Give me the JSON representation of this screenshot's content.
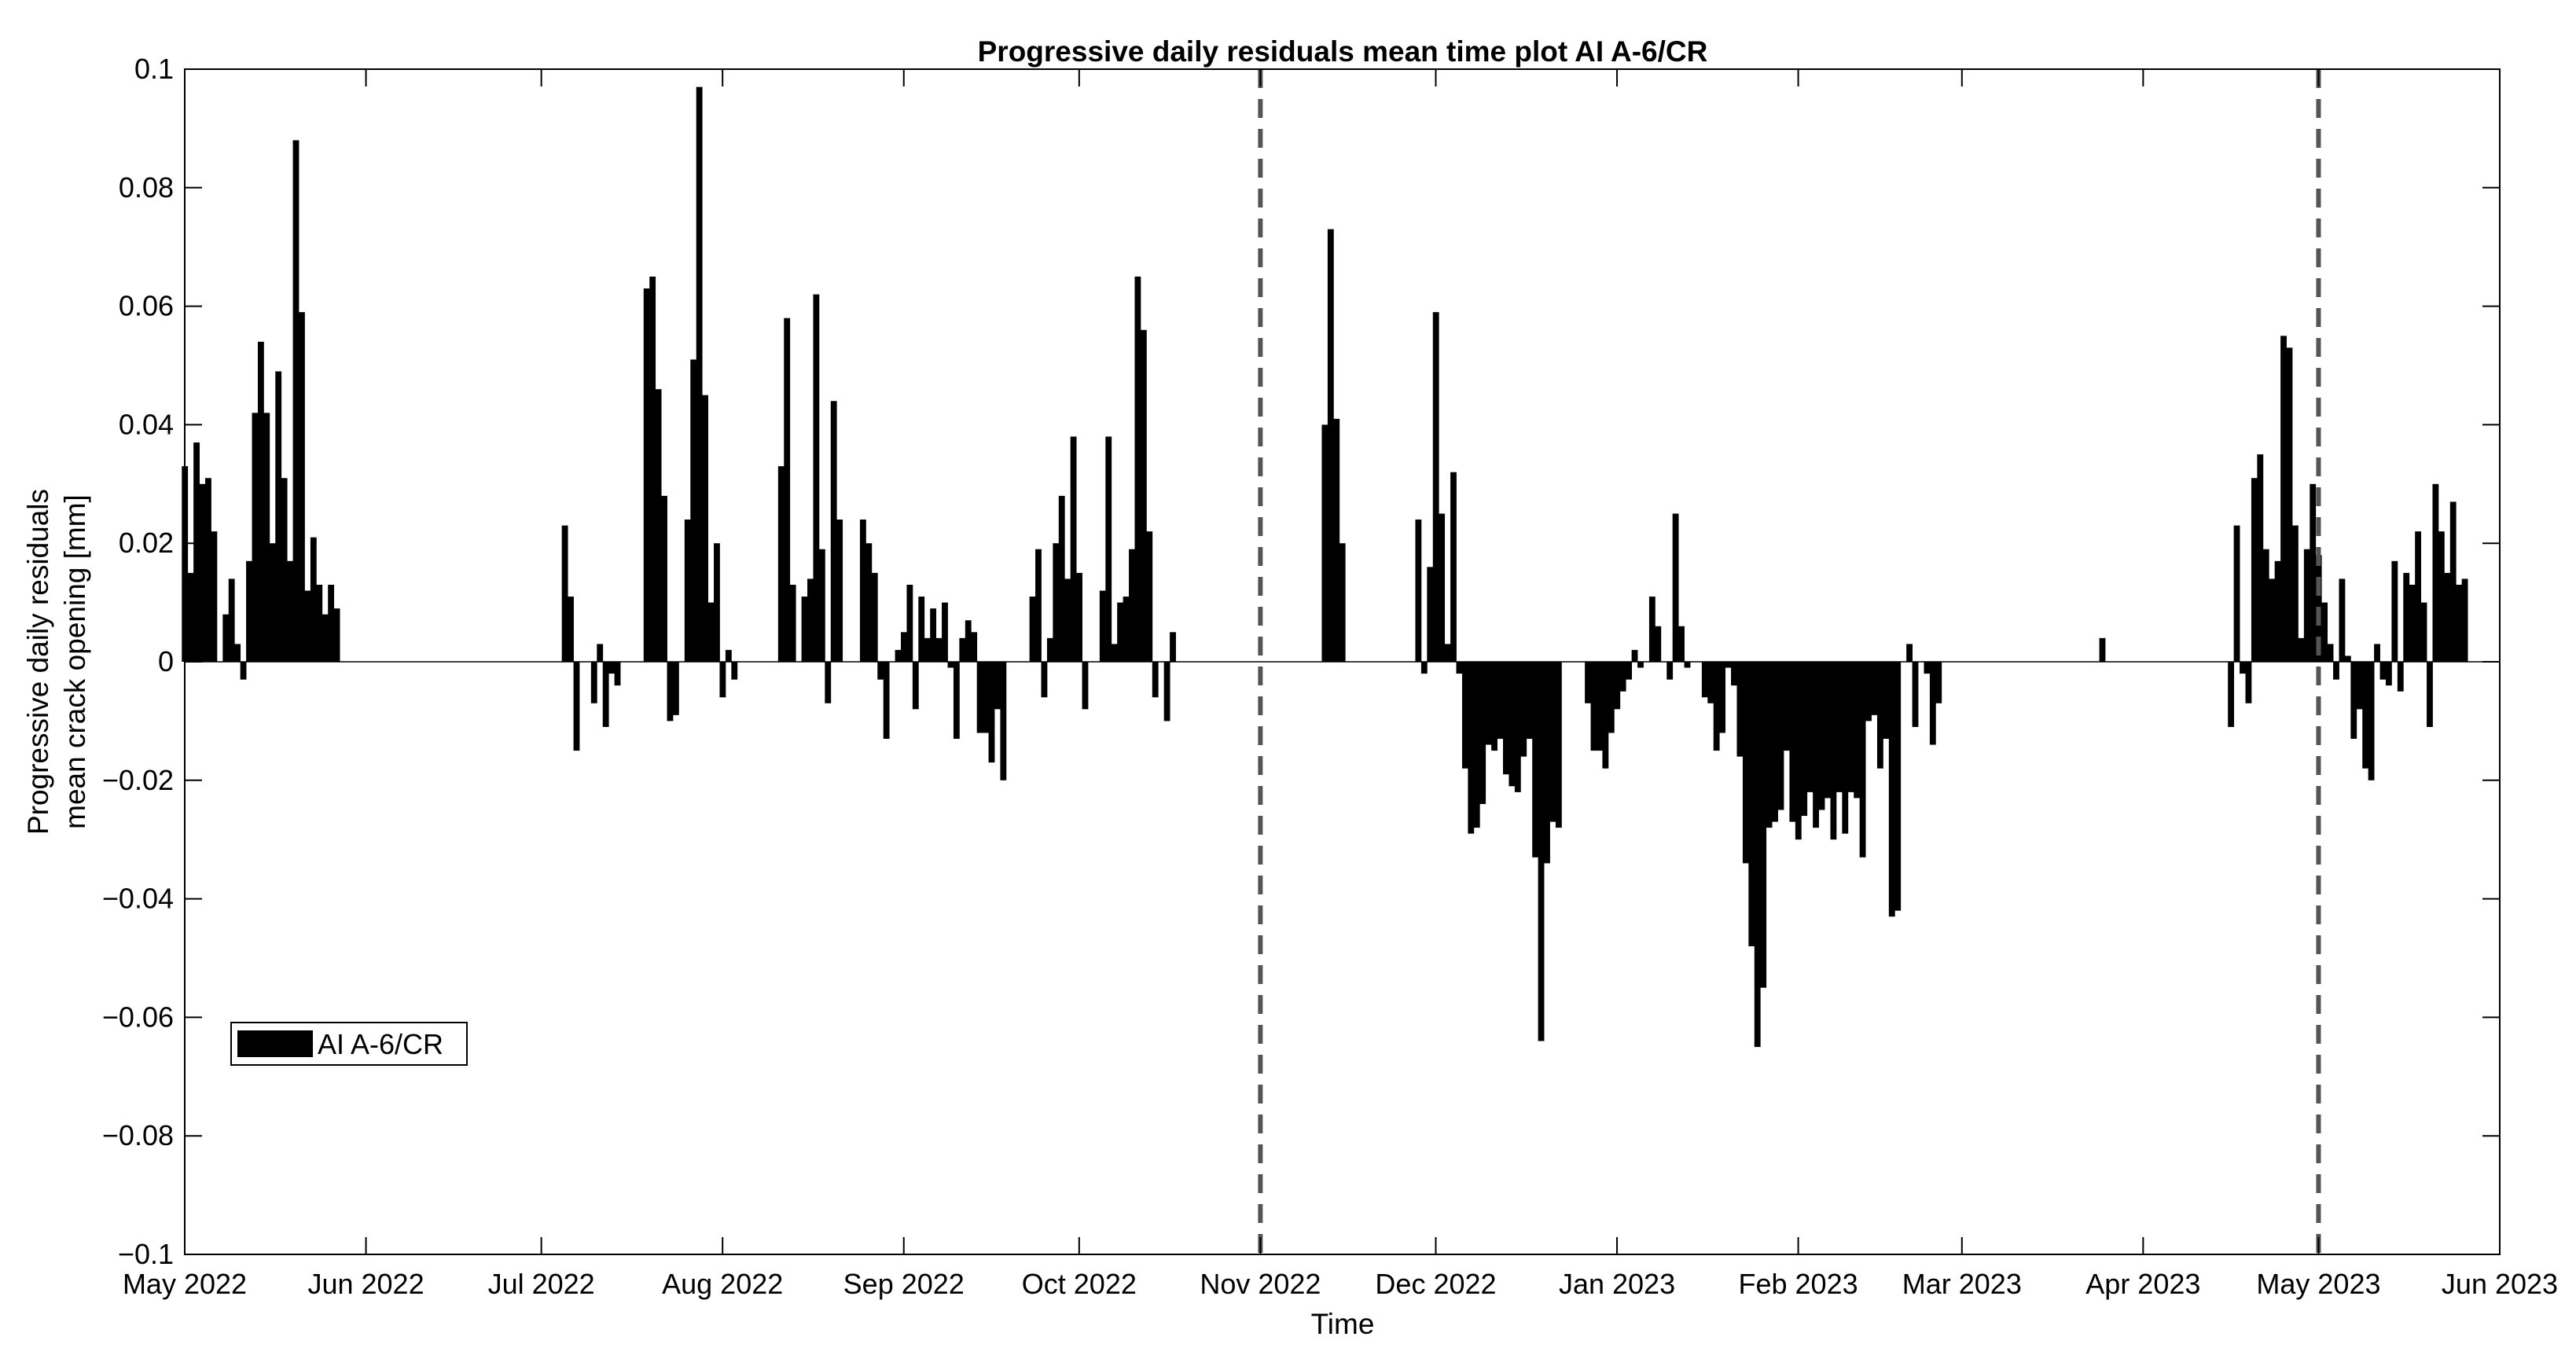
{
  "chart_data": {
    "type": "bar",
    "title": "Progressive daily residuals mean time plot AI A-6/CR",
    "xlabel": "Time",
    "ylabel": [
      "Progressive daily residuals",
      "mean crack opening [mm]"
    ],
    "ylim": [
      -0.1,
      0.1
    ],
    "yticks": [
      0.1,
      0.08,
      0.06,
      0.04,
      0.02,
      0,
      -0.02,
      -0.04,
      -0.06,
      -0.08,
      -0.1
    ],
    "ytick_labels": [
      "0.1",
      "0.08",
      "0.06",
      "0.04",
      "0.02",
      "0",
      "−0.02",
      "−0.04",
      "−0.06",
      "−0.08",
      "−0.1"
    ],
    "xlim": [
      "2022-05-01",
      "2023-06-01"
    ],
    "xticks": [
      {
        "date": "2022-05-01",
        "label": "May 2022"
      },
      {
        "date": "2022-06-01",
        "label": "Jun 2022"
      },
      {
        "date": "2022-07-01",
        "label": "Jul 2022"
      },
      {
        "date": "2022-08-01",
        "label": "Aug 2022"
      },
      {
        "date": "2022-09-01",
        "label": "Sep 2022"
      },
      {
        "date": "2022-10-01",
        "label": "Oct 2022"
      },
      {
        "date": "2022-11-01",
        "label": "Nov 2022"
      },
      {
        "date": "2022-12-01",
        "label": "Dec 2022"
      },
      {
        "date": "2023-01-01",
        "label": "Jan 2023"
      },
      {
        "date": "2023-02-01",
        "label": "Feb 2023"
      },
      {
        "date": "2023-03-01",
        "label": "Mar 2023"
      },
      {
        "date": "2023-04-01",
        "label": "Apr 2023"
      },
      {
        "date": "2023-05-01",
        "label": "May 2023"
      },
      {
        "date": "2023-06-01",
        "label": "Jun 2023"
      }
    ],
    "grid": false,
    "legend": {
      "position": "bottom-left",
      "entries": [
        "AI A-6/CR"
      ]
    },
    "vlines": [
      "2022-11-01",
      "2023-05-01"
    ],
    "bar_color": "#000000",
    "vline_color": "#555555",
    "series": [
      {
        "name": "AI A-6/CR",
        "data": [
          [
            "2022-05-01",
            0.033
          ],
          [
            "2022-05-02",
            0.015
          ],
          [
            "2022-05-03",
            0.037
          ],
          [
            "2022-05-04",
            0.03
          ],
          [
            "2022-05-05",
            0.031
          ],
          [
            "2022-05-06",
            0.022
          ],
          [
            "2022-05-08",
            0.008
          ],
          [
            "2022-05-09",
            0.014
          ],
          [
            "2022-05-10",
            0.003
          ],
          [
            "2022-05-11",
            -0.003
          ],
          [
            "2022-05-12",
            0.017
          ],
          [
            "2022-05-13",
            0.042
          ],
          [
            "2022-05-14",
            0.054
          ],
          [
            "2022-05-15",
            0.042
          ],
          [
            "2022-05-16",
            0.02
          ],
          [
            "2022-05-17",
            0.049
          ],
          [
            "2022-05-18",
            0.031
          ],
          [
            "2022-05-19",
            0.017
          ],
          [
            "2022-05-20",
            0.088
          ],
          [
            "2022-05-21",
            0.059
          ],
          [
            "2022-05-22",
            0.012
          ],
          [
            "2022-05-23",
            0.021
          ],
          [
            "2022-05-24",
            0.013
          ],
          [
            "2022-05-25",
            0.008
          ],
          [
            "2022-05-26",
            0.013
          ],
          [
            "2022-05-27",
            0.009
          ],
          [
            "2022-07-05",
            0.023
          ],
          [
            "2022-07-06",
            0.011
          ],
          [
            "2022-07-07",
            -0.015
          ],
          [
            "2022-07-10",
            -0.007
          ],
          [
            "2022-07-11",
            0.003
          ],
          [
            "2022-07-12",
            -0.011
          ],
          [
            "2022-07-13",
            -0.002
          ],
          [
            "2022-07-14",
            -0.004
          ],
          [
            "2022-07-19",
            0.063
          ],
          [
            "2022-07-20",
            0.065
          ],
          [
            "2022-07-21",
            0.046
          ],
          [
            "2022-07-22",
            0.028
          ],
          [
            "2022-07-23",
            -0.01
          ],
          [
            "2022-07-24",
            -0.009
          ],
          [
            "2022-07-26",
            0.024
          ],
          [
            "2022-07-27",
            0.051
          ],
          [
            "2022-07-28",
            0.097
          ],
          [
            "2022-07-29",
            0.045
          ],
          [
            "2022-07-30",
            0.01
          ],
          [
            "2022-07-31",
            0.02
          ],
          [
            "2022-08-01",
            -0.006
          ],
          [
            "2022-08-02",
            0.002
          ],
          [
            "2022-08-03",
            -0.003
          ],
          [
            "2022-08-11",
            0.033
          ],
          [
            "2022-08-12",
            0.058
          ],
          [
            "2022-08-13",
            0.013
          ],
          [
            "2022-08-15",
            0.011
          ],
          [
            "2022-08-16",
            0.014
          ],
          [
            "2022-08-17",
            0.062
          ],
          [
            "2022-08-18",
            0.019
          ],
          [
            "2022-08-19",
            -0.007
          ],
          [
            "2022-08-20",
            0.044
          ],
          [
            "2022-08-21",
            0.024
          ],
          [
            "2022-08-25",
            0.024
          ],
          [
            "2022-08-26",
            0.02
          ],
          [
            "2022-08-27",
            0.015
          ],
          [
            "2022-08-28",
            -0.003
          ],
          [
            "2022-08-29",
            -0.013
          ],
          [
            "2022-08-31",
            0.002
          ],
          [
            "2022-09-01",
            0.005
          ],
          [
            "2022-09-02",
            0.013
          ],
          [
            "2022-09-03",
            -0.008
          ],
          [
            "2022-09-04",
            0.011
          ],
          [
            "2022-09-05",
            0.004
          ],
          [
            "2022-09-06",
            0.009
          ],
          [
            "2022-09-07",
            0.004
          ],
          [
            "2022-09-08",
            0.01
          ],
          [
            "2022-09-09",
            -0.001
          ],
          [
            "2022-09-10",
            -0.013
          ],
          [
            "2022-09-11",
            0.004
          ],
          [
            "2022-09-12",
            0.007
          ],
          [
            "2022-09-13",
            0.005
          ],
          [
            "2022-09-14",
            -0.012
          ],
          [
            "2022-09-15",
            -0.012
          ],
          [
            "2022-09-16",
            -0.017
          ],
          [
            "2022-09-17",
            -0.008
          ],
          [
            "2022-09-18",
            -0.02
          ],
          [
            "2022-09-23",
            0.011
          ],
          [
            "2022-09-24",
            0.019
          ],
          [
            "2022-09-25",
            -0.006
          ],
          [
            "2022-09-26",
            0.004
          ],
          [
            "2022-09-27",
            0.02
          ],
          [
            "2022-09-28",
            0.028
          ],
          [
            "2022-09-29",
            0.014
          ],
          [
            "2022-09-30",
            0.038
          ],
          [
            "2022-10-01",
            0.015
          ],
          [
            "2022-10-02",
            -0.008
          ],
          [
            "2022-10-05",
            0.012
          ],
          [
            "2022-10-06",
            0.038
          ],
          [
            "2022-10-07",
            0.003
          ],
          [
            "2022-10-08",
            0.01
          ],
          [
            "2022-10-09",
            0.011
          ],
          [
            "2022-10-10",
            0.019
          ],
          [
            "2022-10-11",
            0.065
          ],
          [
            "2022-10-12",
            0.056
          ],
          [
            "2022-10-13",
            0.022
          ],
          [
            "2022-10-14",
            -0.006
          ],
          [
            "2022-10-16",
            -0.01
          ],
          [
            "2022-10-17",
            0.005
          ],
          [
            "2022-11-12",
            0.04
          ],
          [
            "2022-11-13",
            0.073
          ],
          [
            "2022-11-14",
            0.041
          ],
          [
            "2022-11-15",
            0.02
          ],
          [
            "2022-11-28",
            0.024
          ],
          [
            "2022-11-29",
            -0.002
          ],
          [
            "2022-11-30",
            0.016
          ],
          [
            "2022-12-01",
            0.059
          ],
          [
            "2022-12-02",
            0.025
          ],
          [
            "2022-12-03",
            0.003
          ],
          [
            "2022-12-04",
            0.032
          ],
          [
            "2022-12-05",
            -0.002
          ],
          [
            "2022-12-06",
            -0.018
          ],
          [
            "2022-12-07",
            -0.029
          ],
          [
            "2022-12-08",
            -0.028
          ],
          [
            "2022-12-09",
            -0.024
          ],
          [
            "2022-12-10",
            -0.014
          ],
          [
            "2022-12-11",
            -0.015
          ],
          [
            "2022-12-12",
            -0.013
          ],
          [
            "2022-12-13",
            -0.019
          ],
          [
            "2022-12-14",
            -0.021
          ],
          [
            "2022-12-15",
            -0.022
          ],
          [
            "2022-12-16",
            -0.016
          ],
          [
            "2022-12-17",
            -0.013
          ],
          [
            "2022-12-18",
            -0.033
          ],
          [
            "2022-12-19",
            -0.064
          ],
          [
            "2022-12-20",
            -0.034
          ],
          [
            "2022-12-21",
            -0.027
          ],
          [
            "2022-12-22",
            -0.028
          ],
          [
            "2022-12-27",
            -0.007
          ],
          [
            "2022-12-28",
            -0.015
          ],
          [
            "2022-12-29",
            -0.015
          ],
          [
            "2022-12-30",
            -0.018
          ],
          [
            "2022-12-31",
            -0.012
          ],
          [
            "2023-01-01",
            -0.008
          ],
          [
            "2023-01-02",
            -0.005
          ],
          [
            "2023-01-03",
            -0.003
          ],
          [
            "2023-01-04",
            0.002
          ],
          [
            "2023-01-05",
            -0.001
          ],
          [
            "2023-01-07",
            0.011
          ],
          [
            "2023-01-08",
            0.006
          ],
          [
            "2023-01-09",
            0.0
          ],
          [
            "2023-01-10",
            -0.003
          ],
          [
            "2023-01-11",
            0.025
          ],
          [
            "2023-01-12",
            0.006
          ],
          [
            "2023-01-13",
            -0.001
          ],
          [
            "2023-01-16",
            -0.006
          ],
          [
            "2023-01-17",
            -0.007
          ],
          [
            "2023-01-18",
            -0.015
          ],
          [
            "2023-01-19",
            -0.012
          ],
          [
            "2023-01-20",
            -0.001
          ],
          [
            "2023-01-21",
            -0.004
          ],
          [
            "2023-01-22",
            -0.016
          ],
          [
            "2023-01-23",
            -0.034
          ],
          [
            "2023-01-24",
            -0.048
          ],
          [
            "2023-01-25",
            -0.065
          ],
          [
            "2023-01-26",
            -0.055
          ],
          [
            "2023-01-27",
            -0.028
          ],
          [
            "2023-01-28",
            -0.027
          ],
          [
            "2023-01-29",
            -0.025
          ],
          [
            "2023-01-30",
            -0.015
          ],
          [
            "2023-01-31",
            -0.027
          ],
          [
            "2023-02-01",
            -0.03
          ],
          [
            "2023-02-02",
            -0.026
          ],
          [
            "2023-02-03",
            -0.022
          ],
          [
            "2023-02-04",
            -0.028
          ],
          [
            "2023-02-05",
            -0.025
          ],
          [
            "2023-02-06",
            -0.023
          ],
          [
            "2023-02-07",
            -0.03
          ],
          [
            "2023-02-08",
            -0.022
          ],
          [
            "2023-02-09",
            -0.029
          ],
          [
            "2023-02-10",
            -0.022
          ],
          [
            "2023-02-11",
            -0.023
          ],
          [
            "2023-02-12",
            -0.033
          ],
          [
            "2023-02-13",
            -0.01
          ],
          [
            "2023-02-14",
            -0.009
          ],
          [
            "2023-02-15",
            -0.018
          ],
          [
            "2023-02-16",
            -0.013
          ],
          [
            "2023-02-17",
            -0.043
          ],
          [
            "2023-02-18",
            -0.042
          ],
          [
            "2023-02-20",
            0.003
          ],
          [
            "2023-02-21",
            -0.011
          ],
          [
            "2023-02-23",
            -0.002
          ],
          [
            "2023-02-24",
            -0.014
          ],
          [
            "2023-02-25",
            -0.007
          ],
          [
            "2023-03-25",
            0.004
          ],
          [
            "2023-04-16",
            -0.011
          ],
          [
            "2023-04-17",
            0.023
          ],
          [
            "2023-04-18",
            -0.002
          ],
          [
            "2023-04-19",
            -0.007
          ],
          [
            "2023-04-20",
            0.031
          ],
          [
            "2023-04-21",
            0.035
          ],
          [
            "2023-04-22",
            0.019
          ],
          [
            "2023-04-23",
            0.014
          ],
          [
            "2023-04-24",
            0.017
          ],
          [
            "2023-04-25",
            0.055
          ],
          [
            "2023-04-26",
            0.053
          ],
          [
            "2023-04-27",
            0.023
          ],
          [
            "2023-04-28",
            0.004
          ],
          [
            "2023-04-29",
            0.019
          ],
          [
            "2023-04-30",
            0.03
          ],
          [
            "2023-05-01",
            0.018
          ],
          [
            "2023-05-02",
            0.01
          ],
          [
            "2023-05-03",
            0.003
          ],
          [
            "2023-05-04",
            -0.003
          ],
          [
            "2023-05-05",
            0.014
          ],
          [
            "2023-05-06",
            0.001
          ],
          [
            "2023-05-07",
            -0.013
          ],
          [
            "2023-05-08",
            -0.008
          ],
          [
            "2023-05-09",
            -0.018
          ],
          [
            "2023-05-10",
            -0.02
          ],
          [
            "2023-05-11",
            0.003
          ],
          [
            "2023-05-12",
            -0.003
          ],
          [
            "2023-05-13",
            -0.004
          ],
          [
            "2023-05-14",
            0.017
          ],
          [
            "2023-05-15",
            -0.005
          ],
          [
            "2023-05-16",
            0.015
          ],
          [
            "2023-05-17",
            0.013
          ],
          [
            "2023-05-18",
            0.022
          ],
          [
            "2023-05-19",
            0.01
          ],
          [
            "2023-05-20",
            -0.011
          ],
          [
            "2023-05-21",
            0.03
          ],
          [
            "2023-05-22",
            0.022
          ],
          [
            "2023-05-23",
            0.015
          ],
          [
            "2023-05-24",
            0.027
          ],
          [
            "2023-05-25",
            0.013
          ],
          [
            "2023-05-26",
            0.014
          ]
        ]
      }
    ]
  }
}
